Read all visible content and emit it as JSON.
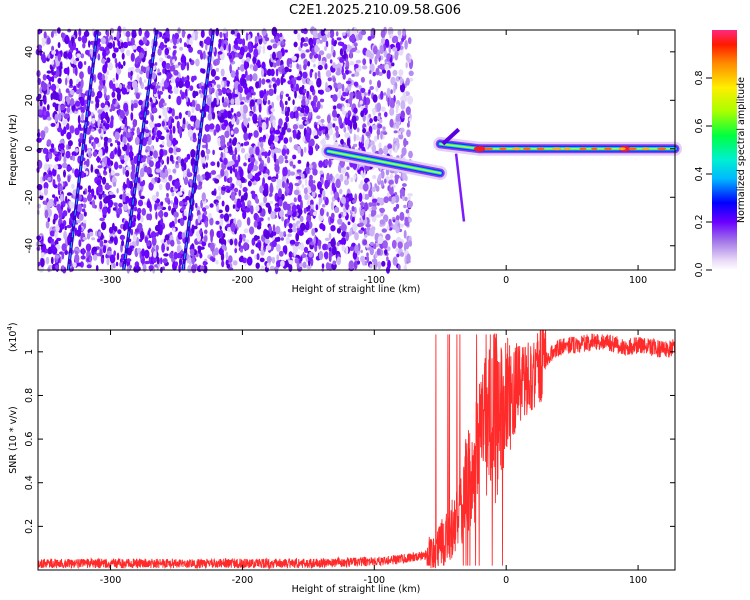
{
  "title": "C2E1.2025.210.09.58.G06",
  "chart_data": [
    {
      "type": "heatmap",
      "xlabel": "Height of straight line (km)",
      "ylabel": "Frequency (Hz)",
      "xlim": [
        -355,
        128
      ],
      "ylim": [
        -50,
        49
      ],
      "x_ticks": [
        -300,
        -200,
        -100,
        0,
        100
      ],
      "y_ticks": [
        -40,
        -20,
        0,
        20,
        40
      ],
      "colorbar": {
        "label": "Normalized spectral amplitude",
        "range": [
          0,
          1
        ],
        "ticks": [
          0.0,
          0.2,
          0.4,
          0.6,
          0.8
        ]
      },
      "features": {
        "noise_region_x": [
          -355,
          -80
        ],
        "carrier_segments": [
          {
            "x0": -135,
            "x1": -50,
            "f0": -1,
            "f1": -10
          },
          {
            "x0": -50,
            "x1": -20,
            "f0": 2,
            "f1": 0
          },
          {
            "x0": -20,
            "x1": 128,
            "f0": 0,
            "f1": 0
          }
        ],
        "slanted_lines": [
          {
            "x0": -332,
            "f0": -50,
            "x1": -310,
            "f1": 49
          },
          {
            "x0": -290,
            "f0": -50,
            "x1": -265,
            "f1": 49
          },
          {
            "x0": -245,
            "f0": -50,
            "x1": -222,
            "f1": 49
          }
        ],
        "peaks_x": [
          -20,
          90
        ]
      }
    },
    {
      "type": "line",
      "xlabel": "Height of straight line (km)",
      "ylabel": "SNR (10 * v/v)",
      "yscale_label": "(x10",
      "yscale_exp": "4",
      "xlim": [
        -355,
        128
      ],
      "ylim": [
        0.0,
        1.1
      ],
      "x_ticks": [
        -300,
        -200,
        -100,
        0,
        100
      ],
      "y_ticks": [
        0.2,
        0.4,
        0.6,
        0.8,
        1
      ],
      "series": [
        {
          "color": "#ff2a2a",
          "x": [
            -355,
            -300,
            -250,
            -200,
            -150,
            -100,
            -80,
            -60,
            -50,
            -45,
            -40,
            -35,
            -30,
            -25,
            -20,
            -15,
            -10,
            -5,
            0,
            10,
            20,
            30,
            40,
            50,
            60,
            70,
            80,
            90,
            100,
            110,
            120,
            128
          ],
          "y": [
            0.03,
            0.03,
            0.03,
            0.03,
            0.03,
            0.04,
            0.05,
            0.07,
            0.12,
            0.15,
            0.2,
            0.25,
            0.4,
            0.45,
            0.6,
            0.7,
            0.68,
            0.75,
            0.78,
            0.85,
            0.9,
            0.97,
            1.02,
            1.03,
            1.04,
            1.05,
            1.04,
            1.02,
            1.03,
            1.02,
            1.01,
            1.02
          ]
        }
      ]
    }
  ]
}
